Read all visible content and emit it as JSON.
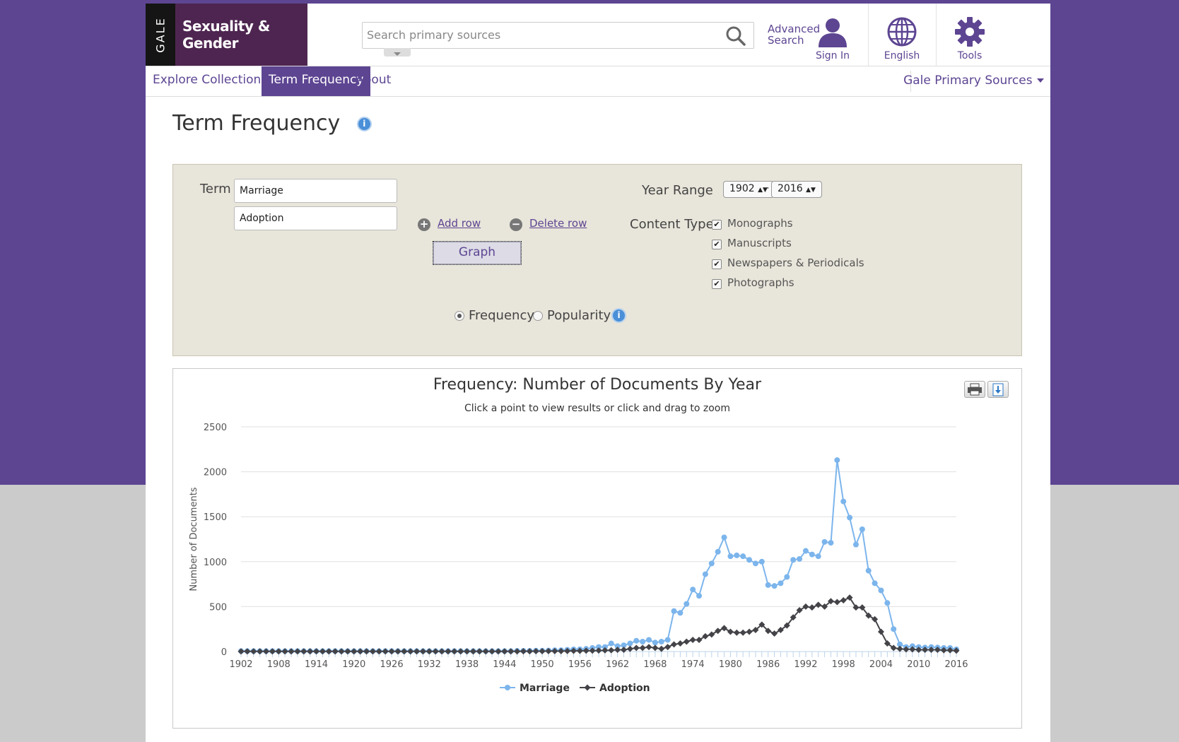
{
  "header": {
    "logo_mark": "GALE",
    "logo_title": "Sexuality & Gender",
    "search_placeholder": "Search primary sources",
    "advanced_search_line1": "Advanced",
    "advanced_search_line2": "Search",
    "sign_in": "Sign In",
    "language": "English",
    "tools": "Tools"
  },
  "nav": {
    "items": [
      "Explore Collections",
      "Term Frequency",
      "About"
    ],
    "active": "Term Frequency",
    "right": "Gale Primary Sources"
  },
  "page_title": "Term Frequency",
  "form": {
    "term_label": "Term",
    "terms": [
      "Marriage",
      "Adoption"
    ],
    "add_row": "Add row",
    "delete_row": "Delete row",
    "graph_button": "Graph",
    "year_range_label": "Year Range",
    "year_from": "1902",
    "year_to": "2016",
    "year_sep": "-",
    "content_type_label": "Content Type",
    "content_types": [
      {
        "label": "Monographs",
        "checked": true
      },
      {
        "label": "Manuscripts",
        "checked": true
      },
      {
        "label": "Newspapers & Periodicals",
        "checked": true
      },
      {
        "label": "Photographs",
        "checked": true
      }
    ],
    "mode_frequency": "Frequency",
    "mode_popularity": "Popularity",
    "selected_mode": "Frequency"
  },
  "colors": {
    "brand_purple": "#5d4592",
    "marriage_series": "#7cb5ec",
    "adoption_series": "#434348"
  },
  "chart_data": {
    "type": "line",
    "title": "Frequency: Number of Documents By Year",
    "subtitle": "Click a point to view results or click and drag to zoom",
    "xlabel": "",
    "ylabel": "Number of Documents",
    "xlim": [
      1902,
      2016
    ],
    "ylim": [
      0,
      2500
    ],
    "yticks": [
      0,
      500,
      1000,
      1500,
      2000,
      2500
    ],
    "xticks": [
      1902,
      1908,
      1914,
      1920,
      1926,
      1932,
      1938,
      1944,
      1950,
      1956,
      1962,
      1968,
      1974,
      1980,
      1986,
      1992,
      1998,
      2004,
      2010,
      2016
    ],
    "grid": true,
    "legend": "bottom-center",
    "series": [
      {
        "name": "Marriage",
        "marker": "circle",
        "points": [
          [
            1902,
            5
          ],
          [
            1903,
            5
          ],
          [
            1904,
            5
          ],
          [
            1905,
            5
          ],
          [
            1906,
            5
          ],
          [
            1907,
            5
          ],
          [
            1908,
            5
          ],
          [
            1909,
            5
          ],
          [
            1910,
            5
          ],
          [
            1911,
            5
          ],
          [
            1912,
            5
          ],
          [
            1913,
            5
          ],
          [
            1914,
            5
          ],
          [
            1915,
            5
          ],
          [
            1916,
            5
          ],
          [
            1917,
            5
          ],
          [
            1918,
            5
          ],
          [
            1919,
            5
          ],
          [
            1920,
            5
          ],
          [
            1921,
            5
          ],
          [
            1922,
            5
          ],
          [
            1923,
            5
          ],
          [
            1924,
            5
          ],
          [
            1925,
            5
          ],
          [
            1926,
            5
          ],
          [
            1927,
            5
          ],
          [
            1928,
            5
          ],
          [
            1929,
            5
          ],
          [
            1930,
            5
          ],
          [
            1931,
            5
          ],
          [
            1932,
            5
          ],
          [
            1933,
            5
          ],
          [
            1934,
            5
          ],
          [
            1935,
            5
          ],
          [
            1936,
            5
          ],
          [
            1937,
            5
          ],
          [
            1938,
            5
          ],
          [
            1939,
            5
          ],
          [
            1940,
            5
          ],
          [
            1941,
            5
          ],
          [
            1942,
            5
          ],
          [
            1943,
            5
          ],
          [
            1944,
            5
          ],
          [
            1945,
            5
          ],
          [
            1946,
            8
          ],
          [
            1947,
            8
          ],
          [
            1948,
            8
          ],
          [
            1949,
            10
          ],
          [
            1950,
            10
          ],
          [
            1951,
            12
          ],
          [
            1952,
            15
          ],
          [
            1953,
            15
          ],
          [
            1954,
            20
          ],
          [
            1955,
            25
          ],
          [
            1956,
            25
          ],
          [
            1957,
            30
          ],
          [
            1958,
            40
          ],
          [
            1959,
            50
          ],
          [
            1960,
            50
          ],
          [
            1961,
            90
          ],
          [
            1962,
            60
          ],
          [
            1963,
            70
          ],
          [
            1964,
            90
          ],
          [
            1965,
            120
          ],
          [
            1966,
            110
          ],
          [
            1967,
            130
          ],
          [
            1968,
            100
          ],
          [
            1969,
            110
          ],
          [
            1970,
            130
          ],
          [
            1971,
            450
          ],
          [
            1972,
            430
          ],
          [
            1973,
            530
          ],
          [
            1974,
            690
          ],
          [
            1975,
            620
          ],
          [
            1976,
            860
          ],
          [
            1977,
            980
          ],
          [
            1978,
            1110
          ],
          [
            1979,
            1270
          ],
          [
            1980,
            1060
          ],
          [
            1981,
            1070
          ],
          [
            1982,
            1060
          ],
          [
            1983,
            1020
          ],
          [
            1984,
            980
          ],
          [
            1985,
            1000
          ],
          [
            1986,
            740
          ],
          [
            1987,
            730
          ],
          [
            1988,
            760
          ],
          [
            1989,
            830
          ],
          [
            1990,
            1020
          ],
          [
            1991,
            1030
          ],
          [
            1992,
            1120
          ],
          [
            1993,
            1080
          ],
          [
            1994,
            1060
          ],
          [
            1995,
            1220
          ],
          [
            1996,
            1210
          ],
          [
            1997,
            2130
          ],
          [
            1998,
            1670
          ],
          [
            1999,
            1490
          ],
          [
            2000,
            1190
          ],
          [
            2001,
            1360
          ],
          [
            2002,
            900
          ],
          [
            2003,
            760
          ],
          [
            2004,
            680
          ],
          [
            2005,
            540
          ],
          [
            2006,
            250
          ],
          [
            2007,
            80
          ],
          [
            2008,
            50
          ],
          [
            2009,
            60
          ],
          [
            2010,
            50
          ],
          [
            2011,
            45
          ],
          [
            2012,
            50
          ],
          [
            2013,
            45
          ],
          [
            2014,
            40
          ],
          [
            2015,
            40
          ],
          [
            2016,
            25
          ]
        ]
      },
      {
        "name": "Adoption",
        "marker": "diamond",
        "points": [
          [
            1902,
            2
          ],
          [
            1903,
            2
          ],
          [
            1904,
            2
          ],
          [
            1905,
            2
          ],
          [
            1906,
            2
          ],
          [
            1907,
            2
          ],
          [
            1908,
            2
          ],
          [
            1909,
            2
          ],
          [
            1910,
            2
          ],
          [
            1911,
            2
          ],
          [
            1912,
            2
          ],
          [
            1913,
            2
          ],
          [
            1914,
            2
          ],
          [
            1915,
            2
          ],
          [
            1916,
            2
          ],
          [
            1917,
            2
          ],
          [
            1918,
            2
          ],
          [
            1919,
            2
          ],
          [
            1920,
            2
          ],
          [
            1921,
            2
          ],
          [
            1922,
            2
          ],
          [
            1923,
            2
          ],
          [
            1924,
            2
          ],
          [
            1925,
            2
          ],
          [
            1926,
            2
          ],
          [
            1927,
            2
          ],
          [
            1928,
            2
          ],
          [
            1929,
            2
          ],
          [
            1930,
            2
          ],
          [
            1931,
            2
          ],
          [
            1932,
            2
          ],
          [
            1933,
            2
          ],
          [
            1934,
            2
          ],
          [
            1935,
            2
          ],
          [
            1936,
            2
          ],
          [
            1937,
            2
          ],
          [
            1938,
            2
          ],
          [
            1939,
            2
          ],
          [
            1940,
            2
          ],
          [
            1941,
            2
          ],
          [
            1942,
            2
          ],
          [
            1943,
            2
          ],
          [
            1944,
            2
          ],
          [
            1945,
            2
          ],
          [
            1946,
            2
          ],
          [
            1947,
            3
          ],
          [
            1948,
            3
          ],
          [
            1949,
            4
          ],
          [
            1950,
            4
          ],
          [
            1951,
            5
          ],
          [
            1952,
            5
          ],
          [
            1953,
            5
          ],
          [
            1954,
            6
          ],
          [
            1955,
            8
          ],
          [
            1956,
            8
          ],
          [
            1957,
            10
          ],
          [
            1958,
            10
          ],
          [
            1959,
            12
          ],
          [
            1960,
            14
          ],
          [
            1961,
            15
          ],
          [
            1962,
            20
          ],
          [
            1963,
            20
          ],
          [
            1964,
            30
          ],
          [
            1965,
            40
          ],
          [
            1966,
            40
          ],
          [
            1967,
            50
          ],
          [
            1968,
            40
          ],
          [
            1969,
            30
          ],
          [
            1970,
            50
          ],
          [
            1971,
            80
          ],
          [
            1972,
            90
          ],
          [
            1973,
            110
          ],
          [
            1974,
            130
          ],
          [
            1975,
            130
          ],
          [
            1976,
            170
          ],
          [
            1977,
            190
          ],
          [
            1978,
            230
          ],
          [
            1979,
            260
          ],
          [
            1980,
            220
          ],
          [
            1981,
            210
          ],
          [
            1982,
            210
          ],
          [
            1983,
            220
          ],
          [
            1984,
            240
          ],
          [
            1985,
            300
          ],
          [
            1986,
            230
          ],
          [
            1987,
            200
          ],
          [
            1988,
            240
          ],
          [
            1989,
            290
          ],
          [
            1990,
            380
          ],
          [
            1991,
            460
          ],
          [
            1992,
            500
          ],
          [
            1993,
            490
          ],
          [
            1994,
            520
          ],
          [
            1995,
            500
          ],
          [
            1996,
            560
          ],
          [
            1997,
            550
          ],
          [
            1998,
            570
          ],
          [
            1999,
            600
          ],
          [
            2000,
            490
          ],
          [
            2001,
            490
          ],
          [
            2002,
            400
          ],
          [
            2003,
            360
          ],
          [
            2004,
            220
          ],
          [
            2005,
            90
          ],
          [
            2006,
            40
          ],
          [
            2007,
            30
          ],
          [
            2008,
            25
          ],
          [
            2009,
            25
          ],
          [
            2010,
            20
          ],
          [
            2011,
            20
          ],
          [
            2012,
            20
          ],
          [
            2013,
            20
          ],
          [
            2014,
            15
          ],
          [
            2015,
            15
          ],
          [
            2016,
            10
          ]
        ]
      }
    ]
  }
}
